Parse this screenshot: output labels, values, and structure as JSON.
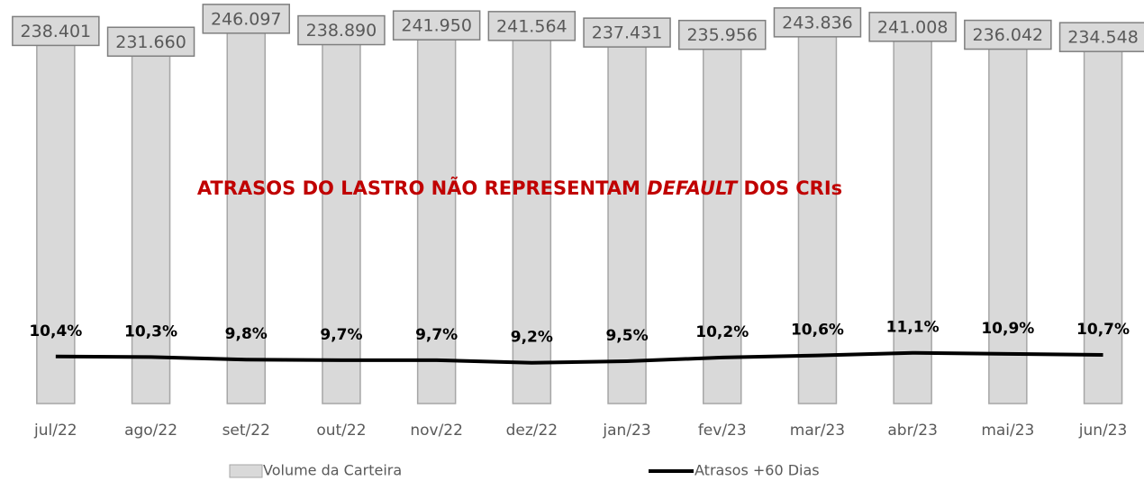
{
  "chart_data": {
    "type": "bar",
    "annotation": [
      "ATRASOS DO LASTRO NÃO REPRESENTAM ",
      "DEFAULT",
      " DOS CRIs"
    ],
    "categories": [
      "jul/22",
      "ago/22",
      "set/22",
      "out/22",
      "nov/22",
      "dez/22",
      "jan/23",
      "fev/23",
      "mar/23",
      "abr/23",
      "mai/23",
      "jun/23"
    ],
    "ylim": [
      0,
      250000
    ],
    "y2lim": [
      1.4,
      77.2
    ],
    "series": [
      {
        "name": "Volume da Carteira",
        "type": "bar",
        "color": "#d9d9d9",
        "values": [
          238401,
          231660,
          246097,
          238890,
          241950,
          241564,
          237431,
          235956,
          243836,
          241008,
          236042,
          234548
        ],
        "value_labels": [
          "238.401",
          "231.660",
          "246.097",
          "238.890",
          "241.950",
          "241.564",
          "237.431",
          "235.956",
          "243.836",
          "241.008",
          "236.042",
          "234.548"
        ]
      },
      {
        "name": "Atrasos +60 Dias",
        "type": "line",
        "axis": "y2",
        "color": "#000000",
        "values": [
          10.4,
          10.3,
          9.8,
          9.7,
          9.7,
          9.2,
          9.5,
          10.2,
          10.6,
          11.1,
          10.9,
          10.7
        ],
        "value_labels": [
          "10,4%",
          "10,3%",
          "9,8%",
          "9,7%",
          "9,7%",
          "9,2%",
          "9,5%",
          "10,2%",
          "10,6%",
          "11,1%",
          "10,9%",
          "10,7%"
        ]
      }
    ]
  }
}
